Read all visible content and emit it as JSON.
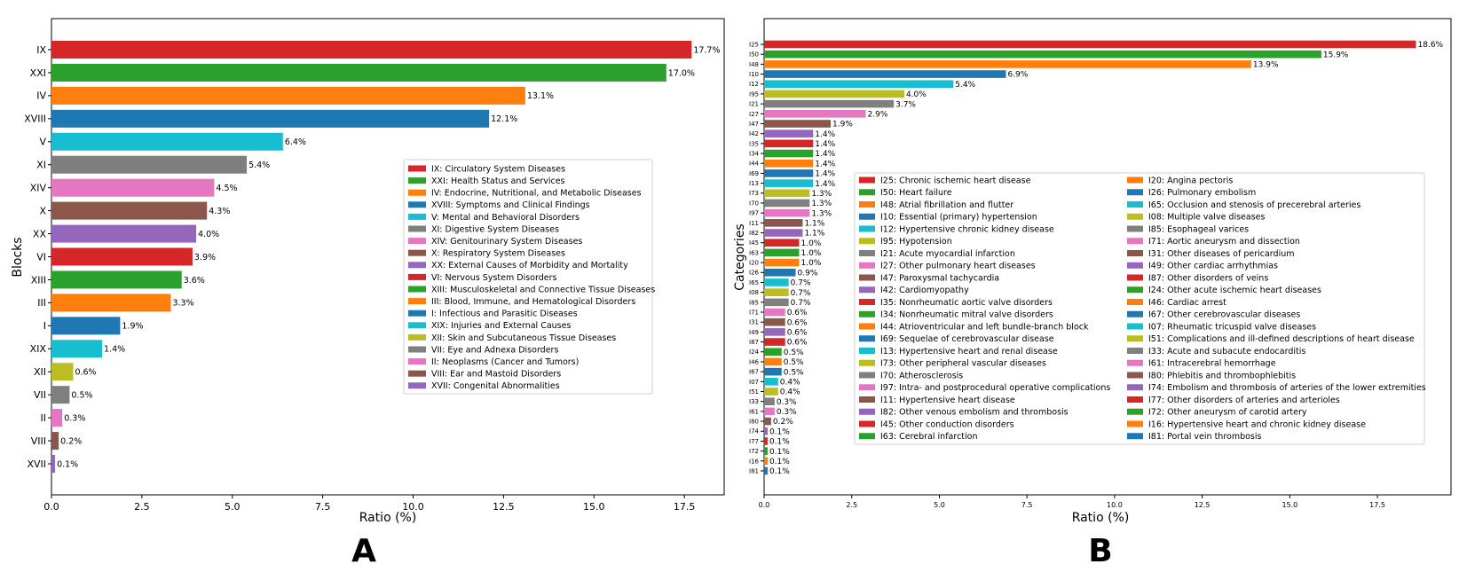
{
  "panels": {
    "a": "A",
    "b": "B"
  },
  "chart_data": [
    {
      "type": "bar",
      "orientation": "horizontal",
      "title": "",
      "xlabel": "Ratio (%)",
      "ylabel": "Blocks",
      "xlim": [
        0,
        18.6
      ],
      "xticks": [
        0.0,
        2.5,
        5.0,
        7.5,
        10.0,
        12.5,
        15.0,
        17.5
      ],
      "xtick_labels": [
        "0.0",
        "2.5",
        "5.0",
        "7.5",
        "10.0",
        "12.5",
        "15.0",
        "17.5"
      ],
      "legend_position": "center-right",
      "categories": [
        "IX",
        "XXI",
        "IV",
        "XVIII",
        "V",
        "XI",
        "XIV",
        "X",
        "XX",
        "VI",
        "XIII",
        "III",
        "I",
        "XIX",
        "XII",
        "VII",
        "II",
        "VIII",
        "XVII"
      ],
      "values": [
        17.7,
        17.0,
        13.1,
        12.1,
        6.4,
        5.4,
        4.5,
        4.3,
        4.0,
        3.9,
        3.6,
        3.3,
        1.9,
        1.4,
        0.6,
        0.5,
        0.3,
        0.2,
        0.1
      ],
      "value_labels": [
        "17.7%",
        "17.0%",
        "13.1%",
        "12.1%",
        "6.4%",
        "5.4%",
        "4.5%",
        "4.3%",
        "4.0%",
        "3.9%",
        "3.6%",
        "3.3%",
        "1.9%",
        "1.4%",
        "0.6%",
        "0.5%",
        "0.3%",
        "0.2%",
        "0.1%"
      ],
      "colors": [
        "#d62728",
        "#2ca02c",
        "#ff7f0e",
        "#1f77b4",
        "#17becf",
        "#7f7f7f",
        "#e377c2",
        "#8c564b",
        "#9467bd",
        "#d62728",
        "#2ca02c",
        "#ff7f0e",
        "#1f77b4",
        "#17becf",
        "#bcbd22",
        "#7f7f7f",
        "#e377c2",
        "#8c564b",
        "#9467bd"
      ],
      "legend": [
        "IX: Circulatory System Diseases",
        "XXI: Health Status and Services",
        "IV: Endocrine, Nutritional, and Metabolic Diseases",
        "XVIII: Symptoms and Clinical Findings",
        "V: Mental and Behavioral Disorders",
        "XI: Digestive System Diseases",
        "XIV: Genitourinary System Diseases",
        "X: Respiratory System Diseases",
        "XX: External Causes of Morbidity and Mortality",
        "VI: Nervous System Disorders",
        "XIII: Musculoskeletal and Connective Tissue Diseases",
        "III: Blood, Immune, and Hematological Disorders",
        "I: Infectious and Parasitic Diseases",
        "XIX: Injuries and External Causes",
        "XII: Skin and Subcutaneous Tissue Diseases",
        "VII: Eye and Adnexa Disorders",
        "II: Neoplasms (Cancer and Tumors)",
        "VIII: Ear and Mastoid Disorders",
        "XVII: Congenital Abnormalities"
      ]
    },
    {
      "type": "bar",
      "orientation": "horizontal",
      "title": "",
      "xlabel": "Ratio (%)",
      "ylabel": "Categories",
      "xlim": [
        0,
        19.6
      ],
      "xticks": [
        0.0,
        2.5,
        5.0,
        7.5,
        10.0,
        12.5,
        15.0,
        17.5
      ],
      "xtick_labels": [
        "0.0",
        "2.5",
        "5.0",
        "7.5",
        "10.0",
        "12.5",
        "15.0",
        "17.5"
      ],
      "legend_position": "center-right",
      "legend_columns": 2,
      "categories": [
        "I25",
        "I50",
        "I48",
        "I10",
        "I12",
        "I95",
        "I21",
        "I27",
        "I47",
        "I42",
        "I35",
        "I34",
        "I44",
        "I69",
        "I13",
        "I73",
        "I70",
        "I97",
        "I11",
        "I82",
        "I45",
        "I63",
        "I20",
        "I26",
        "I65",
        "I08",
        "I85",
        "I71",
        "I31",
        "I49",
        "I87",
        "I24",
        "I46",
        "I67",
        "I07",
        "I51",
        "I33",
        "I61",
        "I80",
        "I74",
        "I77",
        "I72",
        "I16",
        "I81"
      ],
      "values": [
        18.6,
        15.9,
        13.9,
        6.9,
        5.4,
        4.0,
        3.7,
        2.9,
        1.9,
        1.4,
        1.4,
        1.4,
        1.4,
        1.4,
        1.4,
        1.3,
        1.3,
        1.3,
        1.1,
        1.1,
        1.0,
        1.0,
        1.0,
        0.9,
        0.7,
        0.7,
        0.7,
        0.6,
        0.6,
        0.6,
        0.6,
        0.5,
        0.5,
        0.5,
        0.4,
        0.4,
        0.3,
        0.3,
        0.2,
        0.1,
        0.1,
        0.1,
        0.1,
        0.1
      ],
      "value_labels": [
        "18.6%",
        "15.9%",
        "13.9%",
        "6.9%",
        "5.4%",
        "4.0%",
        "3.7%",
        "2.9%",
        "1.9%",
        "1.4%",
        "1.4%",
        "1.4%",
        "1.4%",
        "1.4%",
        "1.4%",
        "1.3%",
        "1.3%",
        "1.3%",
        "1.1%",
        "1.1%",
        "1.0%",
        "1.0%",
        "1.0%",
        "0.9%",
        "0.7%",
        "0.7%",
        "0.7%",
        "0.6%",
        "0.6%",
        "0.6%",
        "0.6%",
        "0.5%",
        "0.5%",
        "0.5%",
        "0.4%",
        "0.4%",
        "0.3%",
        "0.3%",
        "0.2%",
        "0.1%",
        "0.1%",
        "0.1%",
        "0.1%",
        "0.1%"
      ],
      "colors": [
        "#d62728",
        "#2ca02c",
        "#ff7f0e",
        "#1f77b4",
        "#17becf",
        "#bcbd22",
        "#7f7f7f",
        "#e377c2",
        "#8c564b",
        "#9467bd",
        "#d62728",
        "#2ca02c",
        "#ff7f0e",
        "#1f77b4",
        "#17becf",
        "#bcbd22",
        "#7f7f7f",
        "#e377c2",
        "#8c564b",
        "#9467bd",
        "#d62728",
        "#2ca02c",
        "#ff7f0e",
        "#1f77b4",
        "#17becf",
        "#bcbd22",
        "#7f7f7f",
        "#e377c2",
        "#8c564b",
        "#9467bd",
        "#d62728",
        "#2ca02c",
        "#ff7f0e",
        "#1f77b4",
        "#17becf",
        "#bcbd22",
        "#7f7f7f",
        "#e377c2",
        "#8c564b",
        "#9467bd",
        "#d62728",
        "#2ca02c",
        "#ff7f0e",
        "#1f77b4"
      ],
      "legend": [
        "I25: Chronic ischemic heart disease",
        "I50: Heart failure",
        "I48: Atrial fibrillation and flutter",
        "I10: Essential (primary) hypertension",
        "I12: Hypertensive chronic kidney disease",
        "I95: Hypotension",
        "I21: Acute myocardial infarction",
        "I27: Other pulmonary heart diseases",
        "I47: Paroxysmal tachycardia",
        "I42: Cardiomyopathy",
        "I35: Nonrheumatic aortic valve disorders",
        "I34: Nonrheumatic mitral valve disorders",
        "I44: Atrioventricular and left bundle-branch block",
        "I69: Sequelae of cerebrovascular disease",
        "I13: Hypertensive heart and renal disease",
        "I73: Other peripheral vascular diseases",
        "I70: Atherosclerosis",
        "I97: Intra- and postprocedural operative complications",
        "I11: Hypertensive heart disease",
        "I82: Other venous embolism and thrombosis",
        "I45: Other conduction disorders",
        "I63: Cerebral infarction",
        "I20: Angina pectoris",
        "I26: Pulmonary embolism",
        "I65: Occlusion and stenosis of precerebral arteries",
        "I08: Multiple valve diseases",
        "I85: Esophageal varices",
        "I71: Aortic aneurysm and dissection",
        "I31: Other diseases of pericardium",
        "I49: Other cardiac arrhythmias",
        "I87: Other disorders of veins",
        "I24: Other acute ischemic heart diseases",
        "I46: Cardiac arrest",
        "I67: Other cerebrovascular diseases",
        "I07: Rheumatic tricuspid valve diseases",
        "I51: Complications and ill-defined descriptions of heart disease",
        "I33: Acute and subacute endocarditis",
        "I61: Intracerebral hemorrhage",
        "I80: Phlebitis and thrombophlebitis",
        "I74: Embolism and thrombosis of arteries of the lower extremities",
        "I77: Other disorders of arteries and arterioles",
        "I72: Other aneurysm of carotid artery",
        "I16: Hypertensive heart and chronic kidney disease",
        "I81: Portal vein thrombosis"
      ]
    }
  ]
}
